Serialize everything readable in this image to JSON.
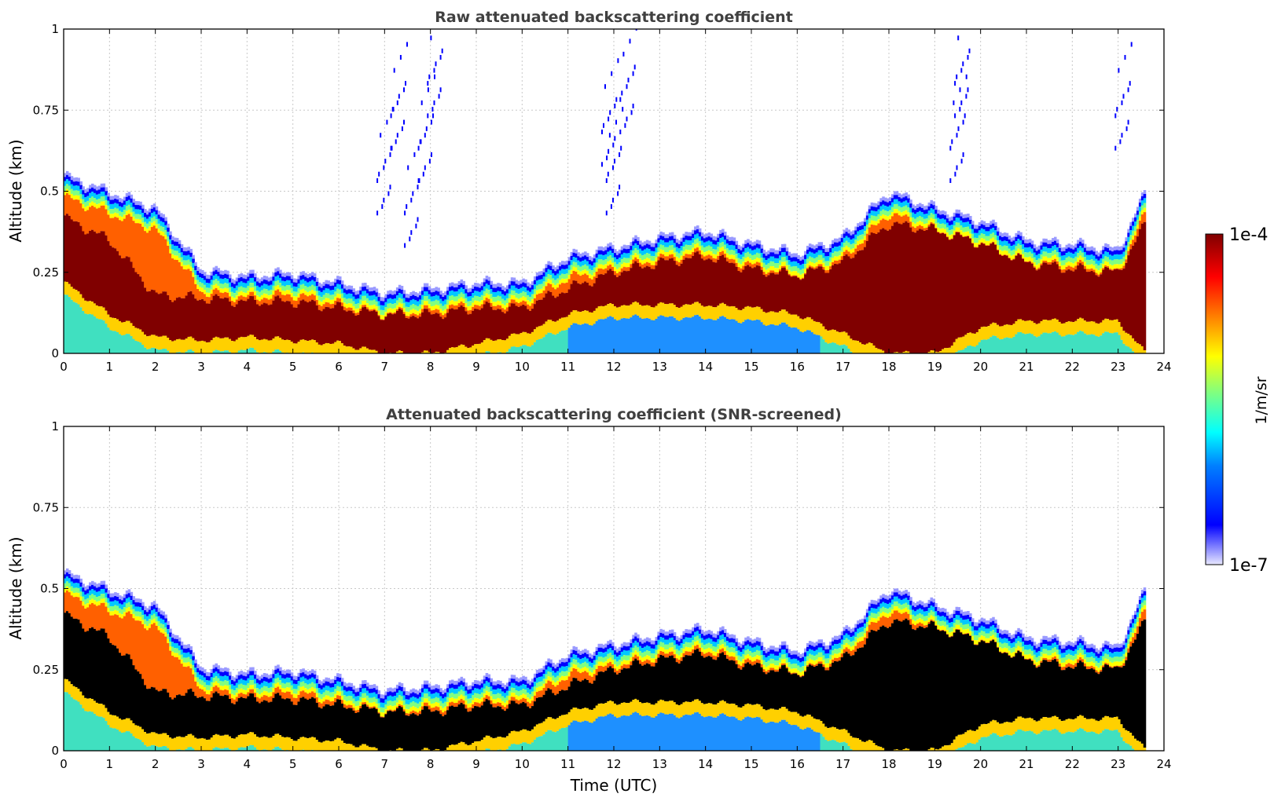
{
  "chart_data": [
    {
      "type": "heatmap",
      "title": "Raw attenuated backscattering coefficient",
      "ylabel": "Altitude (km)",
      "xlabel": "",
      "xlim": [
        0,
        24
      ],
      "ylim": [
        0,
        1
      ],
      "x_ticks": [
        "0",
        "1",
        "2",
        "3",
        "4",
        "5",
        "6",
        "7",
        "8",
        "9",
        "10",
        "11",
        "12",
        "13",
        "14",
        "15",
        "16",
        "17",
        "18",
        "19",
        "20",
        "21",
        "22",
        "23",
        "24"
      ],
      "y_ticks": [
        "0",
        "0.25",
        "0.5",
        "0.75",
        "1"
      ],
      "grid": true,
      "screening": "raw",
      "layer_top_km": [
        [
          0,
          0.55
        ],
        [
          1,
          0.5
        ],
        [
          2,
          0.45
        ],
        [
          3,
          0.26
        ],
        [
          4,
          0.24
        ],
        [
          5,
          0.25
        ],
        [
          6,
          0.22
        ],
        [
          7,
          0.19
        ],
        [
          8,
          0.2
        ],
        [
          9,
          0.22
        ],
        [
          10,
          0.22
        ],
        [
          11,
          0.3
        ],
        [
          12,
          0.33
        ],
        [
          13,
          0.36
        ],
        [
          14,
          0.38
        ],
        [
          15,
          0.34
        ],
        [
          16,
          0.31
        ],
        [
          17,
          0.36
        ],
        [
          18,
          0.5
        ],
        [
          19,
          0.45
        ],
        [
          20,
          0.41
        ],
        [
          21,
          0.35
        ],
        [
          22,
          0.34
        ],
        [
          23,
          0.32
        ],
        [
          23.6,
          0.5
        ]
      ],
      "core_top_km": [
        [
          0,
          0.42
        ],
        [
          1,
          0.35
        ],
        [
          2,
          0.18
        ],
        [
          3,
          0.17
        ],
        [
          4,
          0.16
        ],
        [
          5,
          0.16
        ],
        [
          6,
          0.14
        ],
        [
          7,
          0.12
        ],
        [
          8,
          0.12
        ],
        [
          9,
          0.14
        ],
        [
          10,
          0.14
        ],
        [
          11,
          0.2
        ],
        [
          12,
          0.25
        ],
        [
          13,
          0.28
        ],
        [
          14,
          0.3
        ],
        [
          15,
          0.26
        ],
        [
          16,
          0.24
        ],
        [
          17,
          0.28
        ],
        [
          18,
          0.4
        ],
        [
          19,
          0.38
        ],
        [
          20,
          0.34
        ],
        [
          21,
          0.28
        ],
        [
          22,
          0.26
        ],
        [
          23,
          0.25
        ],
        [
          23.6,
          0.4
        ]
      ],
      "core_bottom_km": [
        [
          0,
          0.22
        ],
        [
          1,
          0.12
        ],
        [
          2,
          0.05
        ],
        [
          3,
          0.04
        ],
        [
          4,
          0.05
        ],
        [
          5,
          0.04
        ],
        [
          6,
          0.03
        ],
        [
          7,
          0.0
        ],
        [
          8,
          0.0
        ],
        [
          9,
          0.03
        ],
        [
          10,
          0.06
        ],
        [
          11,
          0.12
        ],
        [
          12,
          0.15
        ],
        [
          13,
          0.15
        ],
        [
          14,
          0.15
        ],
        [
          15,
          0.14
        ],
        [
          16,
          0.12
        ],
        [
          17,
          0.06
        ],
        [
          18,
          0.0
        ],
        [
          19,
          0.0
        ],
        [
          20,
          0.08
        ],
        [
          21,
          0.1
        ],
        [
          22,
          0.1
        ],
        [
          23,
          0.1
        ],
        [
          23.6,
          0.0
        ]
      ]
    },
    {
      "type": "heatmap",
      "title": "Attenuated backscattering coefficient (SNR-screened)",
      "ylabel": "Altitude (km)",
      "xlabel": "Time (UTC)",
      "xlim": [
        0,
        24
      ],
      "ylim": [
        0,
        1
      ],
      "x_ticks": [
        "0",
        "1",
        "2",
        "3",
        "4",
        "5",
        "6",
        "7",
        "8",
        "9",
        "10",
        "11",
        "12",
        "13",
        "14",
        "15",
        "16",
        "17",
        "18",
        "19",
        "20",
        "21",
        "22",
        "23",
        "24"
      ],
      "y_ticks": [
        "0",
        "0.25",
        "0.5",
        "0.75",
        "1"
      ],
      "grid": true,
      "screening": "snr",
      "layer_top_km": [
        [
          0,
          0.55
        ],
        [
          1,
          0.5
        ],
        [
          2,
          0.45
        ],
        [
          3,
          0.26
        ],
        [
          4,
          0.24
        ],
        [
          5,
          0.25
        ],
        [
          6,
          0.22
        ],
        [
          7,
          0.19
        ],
        [
          8,
          0.2
        ],
        [
          9,
          0.22
        ],
        [
          10,
          0.22
        ],
        [
          11,
          0.3
        ],
        [
          12,
          0.33
        ],
        [
          13,
          0.36
        ],
        [
          14,
          0.38
        ],
        [
          15,
          0.34
        ],
        [
          16,
          0.31
        ],
        [
          17,
          0.36
        ],
        [
          18,
          0.5
        ],
        [
          19,
          0.45
        ],
        [
          20,
          0.41
        ],
        [
          21,
          0.35
        ],
        [
          22,
          0.34
        ],
        [
          23,
          0.32
        ],
        [
          23.6,
          0.5
        ]
      ],
      "core_top_km": [
        [
          0,
          0.42
        ],
        [
          1,
          0.35
        ],
        [
          2,
          0.18
        ],
        [
          3,
          0.17
        ],
        [
          4,
          0.16
        ],
        [
          5,
          0.16
        ],
        [
          6,
          0.14
        ],
        [
          7,
          0.12
        ],
        [
          8,
          0.12
        ],
        [
          9,
          0.14
        ],
        [
          10,
          0.14
        ],
        [
          11,
          0.2
        ],
        [
          12,
          0.25
        ],
        [
          13,
          0.28
        ],
        [
          14,
          0.3
        ],
        [
          15,
          0.26
        ],
        [
          16,
          0.24
        ],
        [
          17,
          0.28
        ],
        [
          18,
          0.4
        ],
        [
          19,
          0.38
        ],
        [
          20,
          0.34
        ],
        [
          21,
          0.28
        ],
        [
          22,
          0.26
        ],
        [
          23,
          0.25
        ],
        [
          23.6,
          0.4
        ]
      ],
      "core_bottom_km": [
        [
          0,
          0.22
        ],
        [
          1,
          0.12
        ],
        [
          2,
          0.05
        ],
        [
          3,
          0.04
        ],
        [
          4,
          0.05
        ],
        [
          5,
          0.04
        ],
        [
          6,
          0.03
        ],
        [
          7,
          0.0
        ],
        [
          8,
          0.0
        ],
        [
          9,
          0.03
        ],
        [
          10,
          0.06
        ],
        [
          11,
          0.12
        ],
        [
          12,
          0.15
        ],
        [
          13,
          0.15
        ],
        [
          14,
          0.15
        ],
        [
          15,
          0.14
        ],
        [
          16,
          0.12
        ],
        [
          17,
          0.06
        ],
        [
          18,
          0.0
        ],
        [
          19,
          0.0
        ],
        [
          20,
          0.08
        ],
        [
          21,
          0.1
        ],
        [
          22,
          0.1
        ],
        [
          23,
          0.1
        ],
        [
          23.6,
          0.0
        ]
      ]
    }
  ],
  "colorbar": {
    "max_label": "1e-4",
    "min_label": "1e-7",
    "unit": "1/m/sr",
    "colormap": "jet",
    "saturated_color": "#800000",
    "screened_saturated_color": "#000000"
  },
  "data_end_hour": 23.6
}
